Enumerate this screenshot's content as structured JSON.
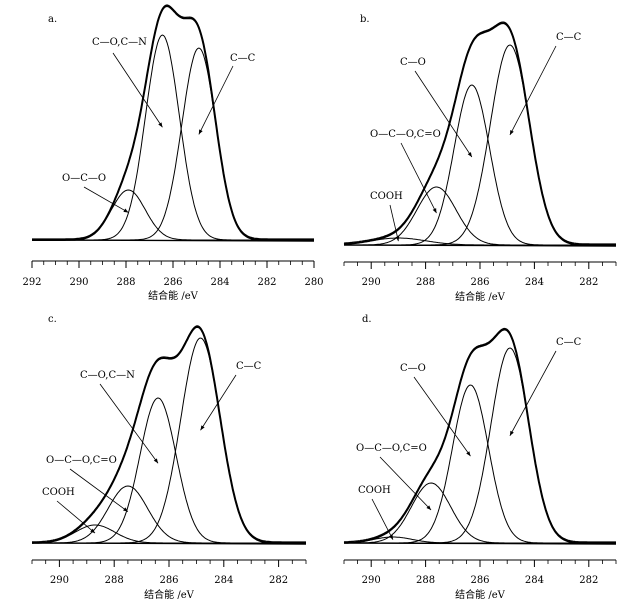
{
  "chart_data": [
    {
      "type": "line",
      "panel": "a.",
      "xlabel": "结合能 /eV",
      "xlim": [
        292,
        280
      ],
      "xticks": [
        292,
        290,
        288,
        286,
        284,
        282,
        280
      ],
      "components": [
        {
          "name": "C—O,C—N",
          "center": 286.45,
          "height": 205,
          "sigma": 0.72
        },
        {
          "name": "C—C",
          "center": 284.9,
          "height": 192,
          "sigma": 0.72
        },
        {
          "name": "O—C—O",
          "center": 287.9,
          "height": 50,
          "sigma": 0.72
        }
      ],
      "labels": [
        {
          "text": "C—O,C—N",
          "component": 0
        },
        {
          "text": "C—C",
          "component": 1
        },
        {
          "text": "O—C—O",
          "component": 2
        }
      ]
    },
    {
      "type": "line",
      "panel": "b.",
      "xlabel": "结合能 /eV",
      "xlim": [
        291,
        281
      ],
      "xticks": [
        290,
        288,
        286,
        284,
        282
      ],
      "components": [
        {
          "name": "C—O",
          "center": 286.3,
          "height": 160,
          "sigma": 0.65
        },
        {
          "name": "C—C",
          "center": 284.9,
          "height": 200,
          "sigma": 0.72
        },
        {
          "name": "O—C—O,C=O",
          "center": 287.6,
          "height": 58,
          "sigma": 0.72
        },
        {
          "name": "COOH",
          "center": 289.0,
          "height": 7,
          "sigma": 1.0
        }
      ],
      "labels": [
        {
          "text": "C—O",
          "component": 0
        },
        {
          "text": "C—C",
          "component": 1
        },
        {
          "text": "O—C—O,C=O",
          "component": 2
        },
        {
          "text": "COOH",
          "component": 3
        }
      ]
    },
    {
      "type": "line",
      "panel": "c.",
      "xlabel": "结合能 /eV",
      "xlim": [
        291,
        281
      ],
      "xticks": [
        290,
        288,
        286,
        284,
        282
      ],
      "components": [
        {
          "name": "C—O,C—N",
          "center": 286.4,
          "height": 145,
          "sigma": 0.66
        },
        {
          "name": "C—C",
          "center": 284.85,
          "height": 205,
          "sigma": 0.72
        },
        {
          "name": "O—C—O,C=O",
          "center": 287.5,
          "height": 57,
          "sigma": 0.72
        },
        {
          "name": "COOH",
          "center": 288.7,
          "height": 18,
          "sigma": 0.72
        }
      ],
      "labels": [
        {
          "text": "C—O,C—N",
          "component": 0
        },
        {
          "text": "C—C",
          "component": 1
        },
        {
          "text": "O—C—O,C=O",
          "component": 2
        },
        {
          "text": "COOH",
          "component": 3
        }
      ]
    },
    {
      "type": "line",
      "panel": "d.",
      "xlabel": "结合能 /eV",
      "xlim": [
        291,
        281
      ],
      "xticks": [
        290,
        288,
        286,
        284,
        282
      ],
      "components": [
        {
          "name": "C—O",
          "center": 286.35,
          "height": 158,
          "sigma": 0.66
        },
        {
          "name": "C—C",
          "center": 284.9,
          "height": 195,
          "sigma": 0.7
        },
        {
          "name": "O—C—O,C=O",
          "center": 287.8,
          "height": 60,
          "sigma": 0.72
        },
        {
          "name": "COOH",
          "center": 289.2,
          "height": 6,
          "sigma": 0.7
        }
      ],
      "labels": [
        {
          "text": "C—O",
          "component": 0
        },
        {
          "text": "C—C",
          "component": 1
        },
        {
          "text": "O—C—O,C=O",
          "component": 2
        },
        {
          "text": "COOH",
          "component": 3
        }
      ]
    }
  ]
}
